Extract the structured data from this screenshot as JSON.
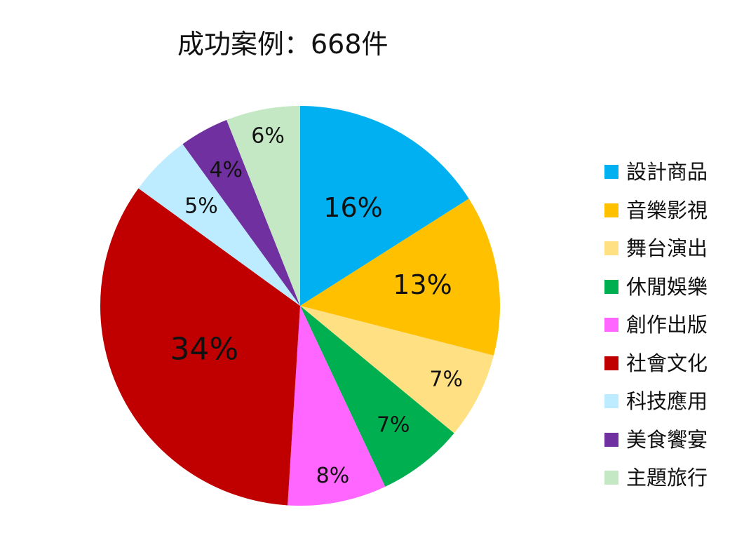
{
  "chart_data": {
    "type": "pie",
    "title": "成功案例：668件",
    "legend_position": "right",
    "series": [
      {
        "name": "設計商品",
        "label": "16%",
        "value": 16,
        "color": "#00B0F0",
        "label_color": "#111111"
      },
      {
        "name": "音樂影視",
        "label": "13%",
        "value": 13,
        "color": "#FFC000",
        "label_color": "#111111"
      },
      {
        "name": "舞台演出",
        "label": "7%",
        "value": 7,
        "color": "#FFE083",
        "label_color": "#111111"
      },
      {
        "name": "休閒娛樂",
        "label": "7%",
        "value": 7,
        "color": "#00B050",
        "label_color": "#111111"
      },
      {
        "name": "創作出版",
        "label": "8%",
        "value": 8,
        "color": "#FF66FF",
        "label_color": "#111111"
      },
      {
        "name": "社會文化",
        "label": "34%",
        "value": 34,
        "color": "#C00000",
        "label_color": "#111111"
      },
      {
        "name": "科技應用",
        "label": "5%",
        "value": 5,
        "color": "#BDEBFF",
        "label_color": "#111111"
      },
      {
        "name": "美食饗宴",
        "label": "4%",
        "value": 4,
        "color": "#7030A0",
        "label_color": "#111111"
      },
      {
        "name": "主題旅行",
        "label": "6%",
        "value": 6,
        "color": "#C4E7C4",
        "label_color": "#111111"
      }
    ]
  }
}
